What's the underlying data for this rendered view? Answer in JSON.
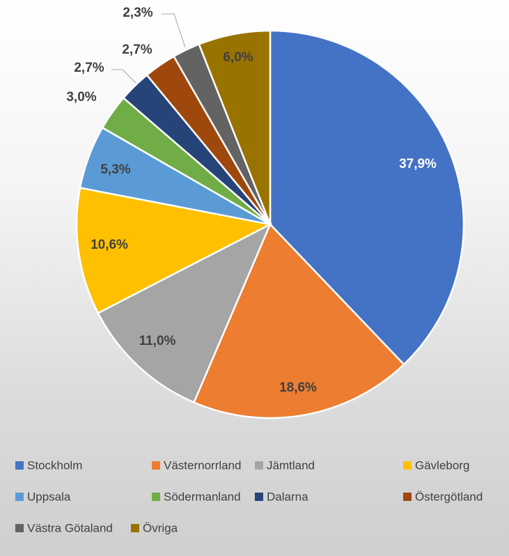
{
  "chart_data": {
    "type": "pie",
    "categories": [
      "Stockholm",
      "Västernorrland",
      "Jämtland",
      "Gävleborg",
      "Uppsala",
      "Södermanland",
      "Dalarna",
      "Östergötland",
      "Västra Götaland",
      "Övriga"
    ],
    "values": [
      37.9,
      18.6,
      11.0,
      10.6,
      5.3,
      3.0,
      2.7,
      2.7,
      2.3,
      6.0
    ],
    "value_labels": [
      "37,9%",
      "18,6%",
      "11,0%",
      "10,6%",
      "5,3%",
      "3,0%",
      "2,7%",
      "2,7%",
      "2,3%",
      "6,0%"
    ],
    "colors": [
      "#4472c4",
      "#ed7d31",
      "#a5a5a5",
      "#ffc000",
      "#5b9bd5",
      "#70ad47",
      "#264478",
      "#9e480e",
      "#636363",
      "#997300"
    ],
    "legend": "bottom"
  }
}
